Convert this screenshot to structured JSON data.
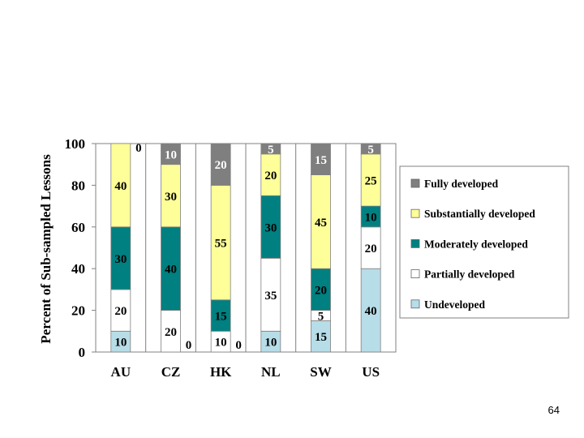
{
  "page_number": "64",
  "colors": {
    "Fully developed": "#7f7f7f",
    "Substantially developed": "#ffff99",
    "Moderately developed": "#008080",
    "Partially developed": "#ffffff",
    "Undeveloped": "#b7dde8"
  },
  "chart_data": {
    "type": "bar",
    "stacked": true,
    "title": "",
    "xlabel": "",
    "ylabel": "Percent of Sub-sampled Lessons",
    "ylim": [
      0,
      100
    ],
    "yticks": [
      "0",
      "20",
      "40",
      "60",
      "80",
      "100"
    ],
    "categories": [
      "AU",
      "CZ",
      "HK",
      "NL",
      "SW",
      "US"
    ],
    "series": [
      {
        "name": "Undeveloped",
        "values": [
          10,
          0,
          0,
          10,
          15,
          40
        ],
        "labels": [
          "10",
          "0",
          "0",
          "10",
          "15",
          "40"
        ]
      },
      {
        "name": "Partially developed",
        "values": [
          20,
          20,
          10,
          35,
          5,
          20
        ],
        "labels": [
          "20",
          "20",
          "10",
          "35",
          "5",
          "20"
        ]
      },
      {
        "name": "Moderately developed",
        "values": [
          30,
          40,
          15,
          30,
          20,
          10
        ],
        "labels": [
          "30",
          "40",
          "15",
          "30",
          "20",
          "10"
        ]
      },
      {
        "name": "Substantially developed",
        "values": [
          40,
          30,
          55,
          20,
          45,
          25
        ],
        "labels": [
          "40",
          "30",
          "55",
          "20",
          "45",
          "25"
        ]
      },
      {
        "name": "Fully developed",
        "values": [
          0,
          10,
          20,
          5,
          15,
          5
        ],
        "labels": [
          "0",
          "10",
          "20",
          "5",
          "15",
          "5"
        ]
      }
    ],
    "legend": {
      "position": "right",
      "entries": [
        "Fully developed",
        "Substantially developed",
        "Moderately developed",
        "Partially developed",
        "Undeveloped"
      ]
    }
  }
}
